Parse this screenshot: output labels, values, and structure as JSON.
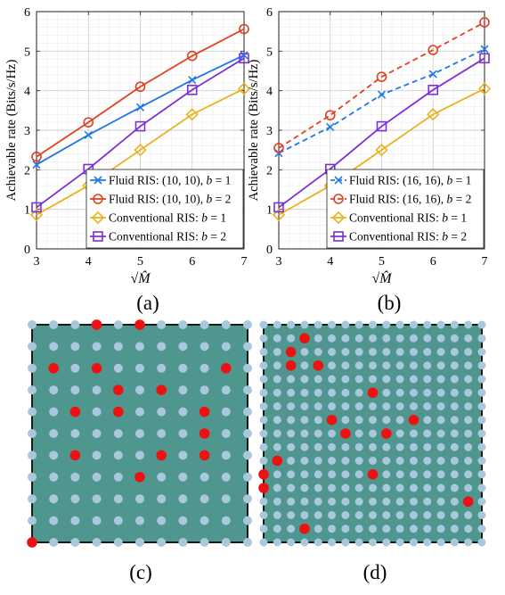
{
  "colors": {
    "fluid1": "#1f77e8",
    "fluid2": "#e0401f",
    "conv1": "#eab21c",
    "conv2": "#7b2fd6",
    "grid": "#d9d9d9",
    "board": "#4e968e",
    "board_edge": "#1a1a1a",
    "element_off": "#a9c8dc",
    "element_on": "#ee1111"
  },
  "panel_labels": {
    "a": "(a)",
    "b": "(b)",
    "c": "(c)",
    "d": "(d)"
  },
  "chart_data": [
    {
      "type": "line",
      "panel": "a",
      "title": "",
      "xlabel": "√M̂",
      "ylabel": "Achievable rate (Bits/s/Hz)",
      "xlim": [
        3,
        7
      ],
      "ylim": [
        0,
        6
      ],
      "xticks": [
        3,
        4,
        5,
        6,
        7
      ],
      "yticks": [
        0,
        1,
        2,
        3,
        4,
        5,
        6
      ],
      "grid": true,
      "legend_position": "bottom-right",
      "x": [
        3,
        4,
        5,
        6,
        7
      ],
      "series": [
        {
          "name": "Fluid RIS: (10, 10), b = 1",
          "values": [
            2.13,
            2.88,
            3.58,
            4.27,
            4.9
          ],
          "color_key": "fluid1",
          "marker": "x",
          "dash": false
        },
        {
          "name": "Fluid RIS: (10, 10), b = 2",
          "values": [
            2.33,
            3.2,
            4.1,
            4.88,
            5.56
          ],
          "color_key": "fluid2",
          "marker": "circle",
          "dash": false
        },
        {
          "name": "Conventional RIS: b = 1",
          "values": [
            0.86,
            1.6,
            2.5,
            3.4,
            4.05
          ],
          "color_key": "conv1",
          "marker": "diamond",
          "dash": false
        },
        {
          "name": "Conventional RIS: b = 2",
          "values": [
            1.05,
            2.02,
            3.1,
            4.02,
            4.82
          ],
          "color_key": "conv2",
          "marker": "square",
          "dash": false
        }
      ]
    },
    {
      "type": "line",
      "panel": "b",
      "title": "",
      "xlabel": "√M̂",
      "ylabel": "Achievable rate (Bits/s/Hz)",
      "xlim": [
        3,
        7
      ],
      "ylim": [
        0,
        6
      ],
      "xticks": [
        3,
        4,
        5,
        6,
        7
      ],
      "yticks": [
        0,
        1,
        2,
        3,
        4,
        5,
        6
      ],
      "grid": true,
      "legend_position": "bottom-right",
      "x": [
        3,
        4,
        5,
        6,
        7
      ],
      "series": [
        {
          "name": "Fluid RIS: (16, 16), b = 1",
          "values": [
            2.42,
            3.08,
            3.9,
            4.42,
            5.05
          ],
          "color_key": "fluid1",
          "marker": "x",
          "dash": true
        },
        {
          "name": "Fluid RIS: (16, 16), b = 2",
          "values": [
            2.55,
            3.38,
            4.35,
            5.03,
            5.73
          ],
          "color_key": "fluid2",
          "marker": "circle",
          "dash": true
        },
        {
          "name": "Conventional RIS: b = 1",
          "values": [
            0.86,
            1.6,
            2.5,
            3.4,
            4.05
          ],
          "color_key": "conv1",
          "marker": "diamond",
          "dash": false
        },
        {
          "name": "Conventional RIS: b = 2",
          "values": [
            1.05,
            2.02,
            3.1,
            4.02,
            4.82
          ],
          "color_key": "conv2",
          "marker": "square",
          "dash": false
        }
      ]
    },
    {
      "type": "scatter",
      "panel": "c",
      "grid_size": 10,
      "active_elements": [
        [
          3,
          0
        ],
        [
          5,
          0
        ],
        [
          1,
          2
        ],
        [
          3,
          2
        ],
        [
          9,
          2
        ],
        [
          4,
          3
        ],
        [
          6,
          3
        ],
        [
          2,
          4
        ],
        [
          4,
          4
        ],
        [
          8,
          4
        ],
        [
          8,
          5
        ],
        [
          2,
          6
        ],
        [
          6,
          6
        ],
        [
          8,
          6
        ],
        [
          5,
          7
        ],
        [
          0,
          10
        ]
      ]
    },
    {
      "type": "scatter",
      "panel": "d",
      "grid_size": 16,
      "active_elements": [
        [
          3,
          1
        ],
        [
          2,
          2
        ],
        [
          2,
          3
        ],
        [
          4,
          3
        ],
        [
          8,
          5
        ],
        [
          5,
          7
        ],
        [
          11,
          7
        ],
        [
          6,
          8
        ],
        [
          9,
          8
        ],
        [
          1,
          10
        ],
        [
          0,
          11
        ],
        [
          8,
          11
        ],
        [
          0,
          12
        ],
        [
          15,
          13
        ],
        [
          3,
          15
        ]
      ]
    }
  ]
}
